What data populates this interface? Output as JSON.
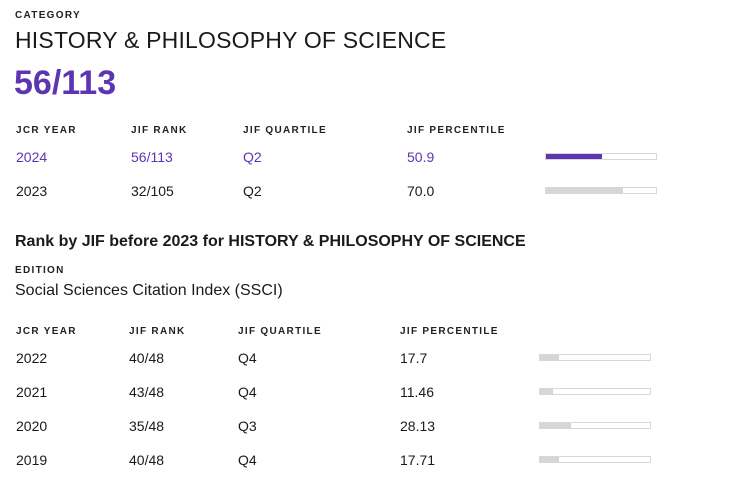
{
  "category": {
    "label": "CATEGORY",
    "name": "HISTORY & PHILOSOPHY OF SCIENCE",
    "rank": "56/113"
  },
  "table1": {
    "headers": {
      "year": "JCR YEAR",
      "rank": "JIF RANK",
      "quartile": "JIF QUARTILE",
      "percentile": "JIF PERCENTILE"
    },
    "rows": [
      {
        "year": "2024",
        "rank": "56/113",
        "quartile": "Q2",
        "percentile": "50.9",
        "percentile_value": 50.9,
        "current": true
      },
      {
        "year": "2023",
        "rank": "32/105",
        "quartile": "Q2",
        "percentile": "70.0",
        "percentile_value": 70.0,
        "current": false
      }
    ]
  },
  "section2": {
    "title": "Rank by JIF before 2023 for HISTORY & PHILOSOPHY OF SCIENCE",
    "edition_label": "EDITION",
    "edition_name": "Social Sciences Citation Index (SSCI)"
  },
  "table2": {
    "headers": {
      "year": "JCR YEAR",
      "rank": "JIF RANK",
      "quartile": "JIF QUARTILE",
      "percentile": "JIF PERCENTILE"
    },
    "rows": [
      {
        "year": "2022",
        "rank": "40/48",
        "quartile": "Q4",
        "percentile": "17.7",
        "percentile_value": 17.7
      },
      {
        "year": "2021",
        "rank": "43/48",
        "quartile": "Q4",
        "percentile": "11.46",
        "percentile_value": 11.46
      },
      {
        "year": "2020",
        "rank": "35/48",
        "quartile": "Q3",
        "percentile": "28.13",
        "percentile_value": 28.13
      },
      {
        "year": "2019",
        "rank": "40/48",
        "quartile": "Q4",
        "percentile": "17.71",
        "percentile_value": 17.71
      }
    ]
  },
  "colors": {
    "accent": "#5e35b1",
    "bar_fill": "#d6d6d6"
  }
}
